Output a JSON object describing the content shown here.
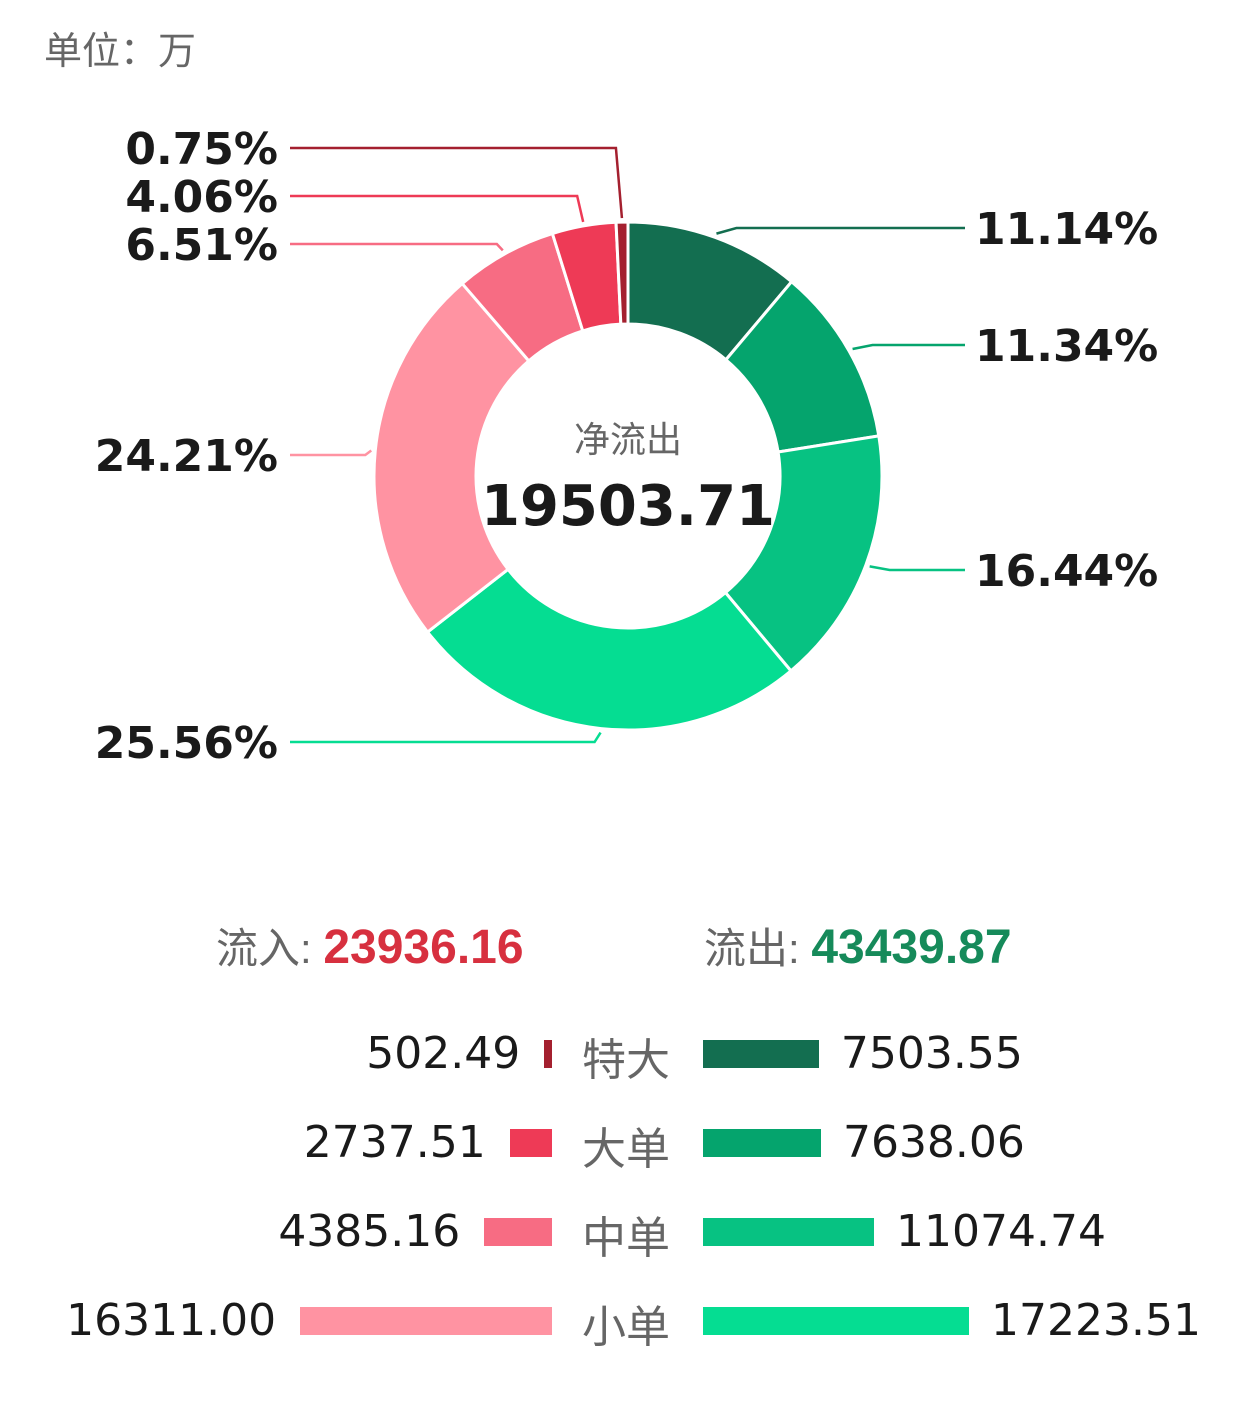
{
  "unit_label": "单位：万",
  "center": {
    "label": "净流出",
    "value": "19503.71"
  },
  "totals": {
    "inflow_label": "流入:",
    "inflow_value": "23936.16",
    "outflow_label": "流出:",
    "outflow_value": "43439.87"
  },
  "colors": {
    "out_super": "#136e50",
    "out_large": "#05a46d",
    "out_medium": "#07c282",
    "out_small": "#05dd92",
    "in_small": "#ff93a2",
    "in_medium": "#f76c83",
    "in_large": "#ee3a56",
    "in_super": "#a4202f",
    "inflow_text": "#d7303f",
    "outflow_text": "#168a5a"
  },
  "chart_data": {
    "type": "pie",
    "donut": true,
    "slices": [
      {
        "name": "流出 特大",
        "percent": "11.14%",
        "value": 11.14,
        "color": "#136e50"
      },
      {
        "name": "流出 大单",
        "percent": "11.34%",
        "value": 11.34,
        "color": "#05a46d"
      },
      {
        "name": "流出 中单",
        "percent": "16.44%",
        "value": 16.44,
        "color": "#07c282"
      },
      {
        "name": "流出 小单",
        "percent": "25.56%",
        "value": 25.56,
        "color": "#05dd92"
      },
      {
        "name": "流入 小单",
        "percent": "24.21%",
        "value": 24.21,
        "color": "#ff93a2"
      },
      {
        "name": "流入 中单",
        "percent": "6.51%",
        "value": 6.51,
        "color": "#f76c83"
      },
      {
        "name": "流入 大单",
        "percent": "4.06%",
        "value": 4.06,
        "color": "#ee3a56"
      },
      {
        "name": "流入 特大",
        "percent": "0.75%",
        "value": 0.75,
        "color": "#a4202f"
      }
    ]
  },
  "bars": {
    "max": 17223.51,
    "rows": [
      {
        "category": "特大",
        "inflow": 502.49,
        "inflow_text": "502.49",
        "outflow": 7503.55,
        "outflow_text": "7503.55",
        "in_color": "#a4202f",
        "out_color": "#136e50"
      },
      {
        "category": "大单",
        "inflow": 2737.51,
        "inflow_text": "2737.51",
        "outflow": 7638.06,
        "outflow_text": "7638.06",
        "in_color": "#ee3a56",
        "out_color": "#05a46d"
      },
      {
        "category": "中单",
        "inflow": 4385.16,
        "inflow_text": "4385.16",
        "outflow": 11074.74,
        "outflow_text": "11074.74",
        "in_color": "#f76c83",
        "out_color": "#07c282"
      },
      {
        "category": "小单",
        "inflow": 16311.0,
        "inflow_text": "16311.00",
        "outflow": 17223.51,
        "outflow_text": "17223.51",
        "in_color": "#ff93a2",
        "out_color": "#05dd92"
      }
    ]
  }
}
